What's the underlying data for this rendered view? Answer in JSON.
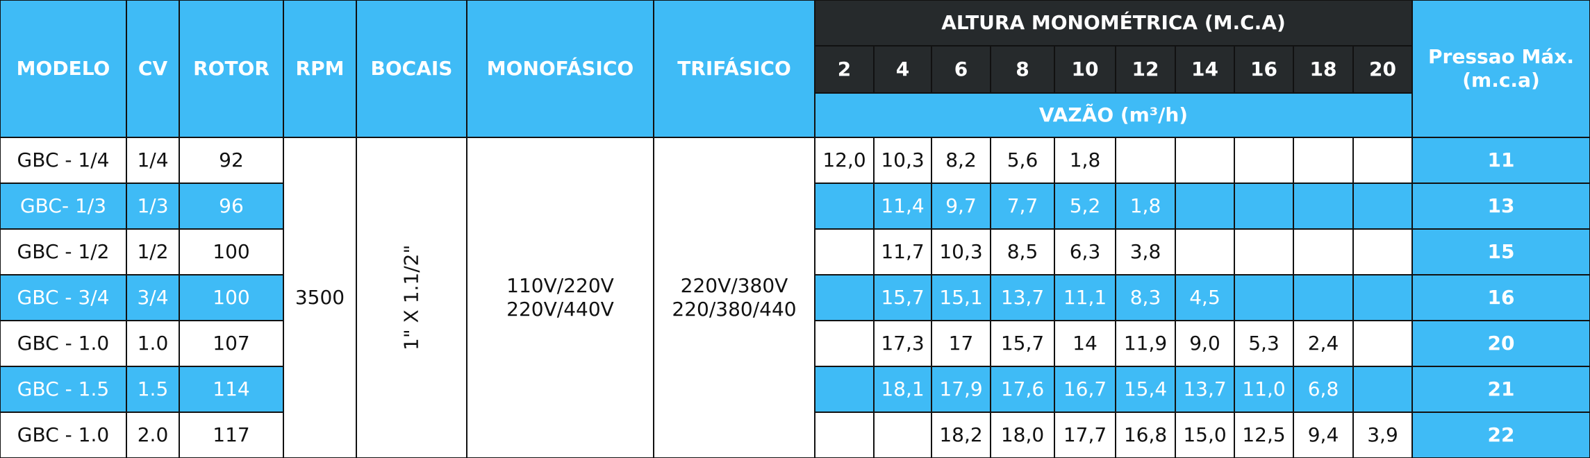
{
  "header": {
    "columns": [
      "MODELO",
      "CV",
      "ROTOR",
      "RPM",
      "BOCAIS",
      "MONOFÁSICO",
      "TRIFÁSICO"
    ],
    "altura_title": "ALTURA MONOMÉTRICA (M.C.A)",
    "heights": [
      "2",
      "4",
      "6",
      "8",
      "10",
      "12",
      "14",
      "16",
      "18",
      "20"
    ],
    "vazao_title": "VAZÃO (m³/h)",
    "pressure_title": [
      "Pressao Máx.",
      "(m.c.a)"
    ]
  },
  "table": {
    "rpm": "3500",
    "bocais": "1\" X 1.1/2\"",
    "monofasico": [
      "110V/220V",
      "220V/440V"
    ],
    "trifasico": [
      "220V/380V",
      "220/380/440"
    ],
    "rows": [
      {
        "modelo": "GBC - 1/4",
        "cv": "1/4",
        "rotor": "92",
        "flows": [
          "12,0",
          "10,3",
          "8,2",
          "5,6",
          "1,8",
          null,
          null,
          null,
          null,
          null
        ],
        "pressure": "11"
      },
      {
        "modelo": "GBC- 1/3",
        "cv": "1/3",
        "rotor": "96",
        "flows": [
          null,
          "11,4",
          "9,7",
          "7,7",
          "5,2",
          "1,8",
          null,
          null,
          null,
          null
        ],
        "pressure": "13"
      },
      {
        "modelo": "GBC - 1/2",
        "cv": "1/2",
        "rotor": "100",
        "flows": [
          null,
          "11,7",
          "10,3",
          "8,5",
          "6,3",
          "3,8",
          null,
          null,
          null,
          null
        ],
        "pressure": "15"
      },
      {
        "modelo": "GBC - 3/4",
        "cv": "3/4",
        "rotor": "100",
        "flows": [
          null,
          "15,7",
          "15,1",
          "13,7",
          "11,1",
          "8,3",
          "4,5",
          null,
          null,
          null
        ],
        "pressure": "16"
      },
      {
        "modelo": "GBC - 1.0",
        "cv": "1.0",
        "rotor": "107",
        "flows": [
          null,
          "17,3",
          "17",
          "15,7",
          "14",
          "11,9",
          "9,0",
          "5,3",
          "2,4",
          null
        ],
        "pressure": "20"
      },
      {
        "modelo": "GBC - 1.5",
        "cv": "1.5",
        "rotor": "114",
        "flows": [
          null,
          "18,1",
          "17,9",
          "17,6",
          "16,7",
          "15,4",
          "13,7",
          "11,0",
          "6,8",
          null
        ],
        "pressure": "21"
      },
      {
        "modelo": "GBC - 1.0",
        "cv": "2.0",
        "rotor": "117",
        "flows": [
          null,
          null,
          "18,2",
          "18,0",
          "17,7",
          "16,8",
          "15,0",
          "12,5",
          "9,4",
          "3,9"
        ],
        "pressure": "22"
      }
    ]
  }
}
